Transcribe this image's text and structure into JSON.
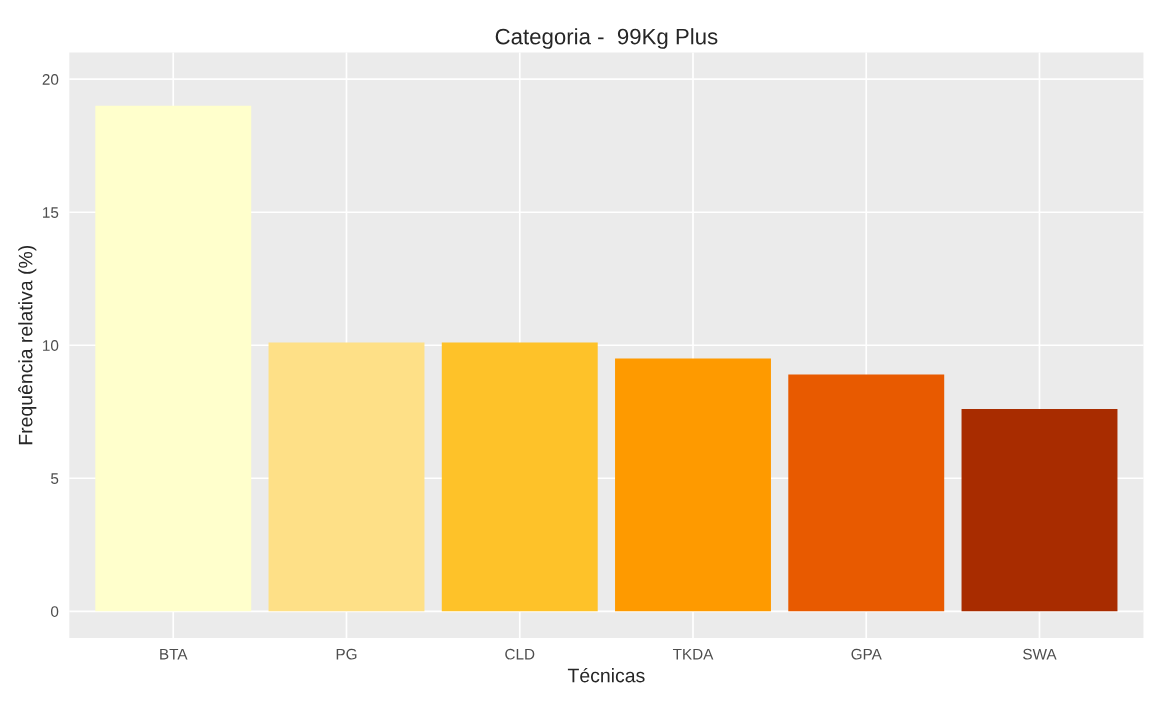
{
  "chart_data": {
    "type": "bar",
    "title": "Categoria -  99Kg Plus",
    "xlabel": "Técnicas",
    "ylabel": "Frequência relativa (%)",
    "categories": [
      "BTA",
      "PG",
      "CLD",
      "TKDA",
      "GPA",
      "SWA"
    ],
    "values": [
      19.0,
      10.1,
      10.1,
      9.5,
      8.9,
      7.6
    ],
    "colors": [
      "#ffffcc",
      "#fee087",
      "#fec229",
      "#fe9a00",
      "#e85a00",
      "#a82c00"
    ],
    "ylim": [
      -1,
      21
    ],
    "yticks": [
      0,
      5,
      10,
      15,
      20
    ],
    "grid": true
  }
}
